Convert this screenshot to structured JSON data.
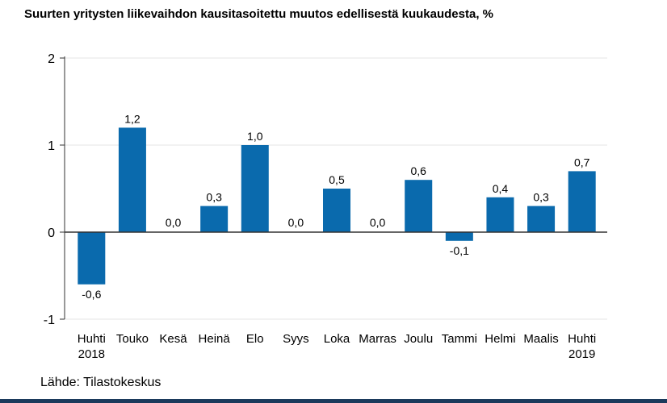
{
  "title": "Suurten yritysten liikevaihdon kausitasoitettu muutos edellisestä kuukaudesta, %",
  "source": "Lähde: Tilastokeskus",
  "chart_data": {
    "type": "bar",
    "title": "Suurten yritysten liikevaihdon kausitasoitettu muutos edellisestä kuukaudesta, %",
    "categories": [
      [
        "Huhti",
        "2018"
      ],
      [
        "Touko"
      ],
      [
        "Kesä"
      ],
      [
        "Heinä"
      ],
      [
        "Elo"
      ],
      [
        "Syys"
      ],
      [
        "Loka"
      ],
      [
        "Marras"
      ],
      [
        "Joulu"
      ],
      [
        "Tammi"
      ],
      [
        "Helmi"
      ],
      [
        "Maalis"
      ],
      [
        "Huhti",
        "2019"
      ]
    ],
    "values": [
      -0.6,
      1.2,
      0.0,
      0.3,
      1.0,
      0.0,
      0.5,
      0.0,
      0.6,
      -0.1,
      0.4,
      0.3,
      0.7
    ],
    "data_labels": [
      "-0,6",
      "1,2",
      "0,0",
      "0,3",
      "1,0",
      "0,0",
      "0,5",
      "0,0",
      "0,6",
      "-0,1",
      "0,4",
      "0,3",
      "0,7"
    ],
    "yticks": [
      -1,
      0,
      1,
      2
    ],
    "ytick_labels": [
      "-1",
      "0",
      "1",
      "2"
    ],
    "ylim": [
      -1,
      2
    ],
    "grid": true,
    "bar_color": "#0a6aad",
    "grid_color": "#e6e6e6",
    "axis_color": "#333333"
  }
}
